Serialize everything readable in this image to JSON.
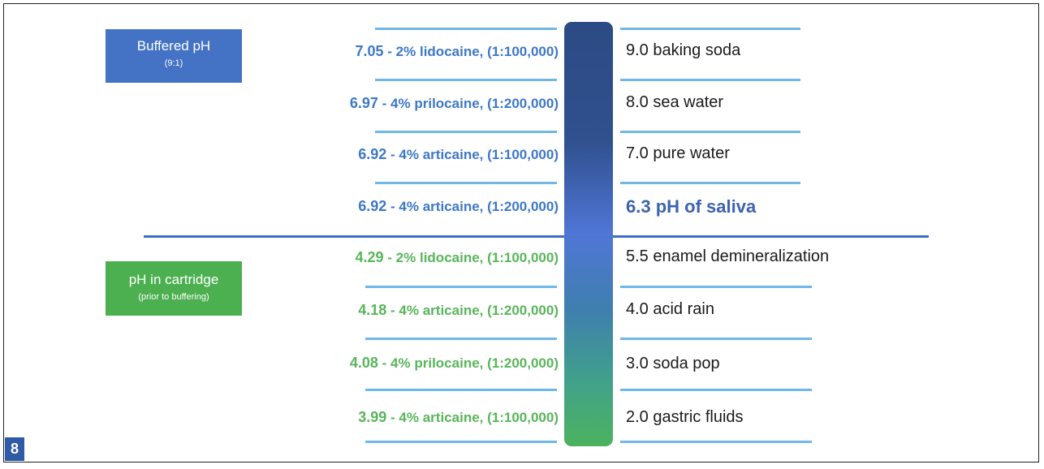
{
  "figure_number": "8",
  "buffered_label": {
    "title": "Buffered pH",
    "subtitle": "(9:1)"
  },
  "cartridge_label": {
    "title": "pH in cartridge",
    "subtitle": "(prior to buffering)"
  },
  "buffered_items": [
    {
      "value": "7.05",
      "text": " - 2% lidocaine, (1:100,000)"
    },
    {
      "value": "6.97",
      "text": " - 4% prilocaine, (1:200,000)"
    },
    {
      "value": "6.92",
      "text": " - 4% articaine, (1:100,000)"
    },
    {
      "value": "6.92",
      "text": " - 4% articaine, (1:200,000)"
    }
  ],
  "cartridge_items": [
    {
      "value": "4.29",
      "text": " - 2% lidocaine, (1:100,000)"
    },
    {
      "value": "4.18",
      "text": " - 4% articaine, (1:200,000)"
    },
    {
      "value": "4.08",
      "text": " - 4% prilocaine, (1:200,000)"
    },
    {
      "value": "3.99",
      "text": " - 4% articaine, (1:100,000)"
    }
  ],
  "reference_items": [
    "9.0 baking soda",
    "8.0 sea water",
    "7.0 pure water",
    "6.3 pH of saliva",
    "5.5 enamel demineralization",
    "4.0 acid rain",
    "3.0 soda pop",
    "2.0 gastric fluids"
  ],
  "colors": {
    "buffered": "#4472c4",
    "cartridge": "#4caf50",
    "divider": "#3a6fc2",
    "rule": "#6eb7e8"
  }
}
